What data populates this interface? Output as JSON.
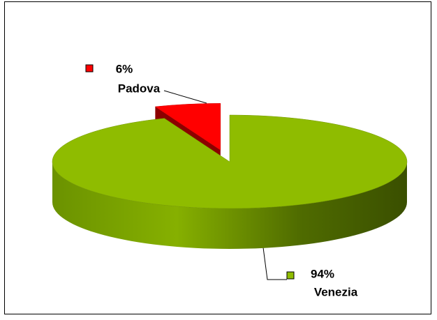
{
  "chart_data": {
    "type": "pie",
    "categories": [
      "Padova",
      "Venezia"
    ],
    "values": [
      6,
      94
    ],
    "value_labels": [
      "6%",
      "94%"
    ],
    "colors": [
      "#ff0000",
      "#8fbc00"
    ]
  }
}
